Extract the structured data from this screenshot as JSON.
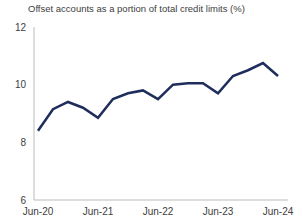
{
  "chart_data": {
    "type": "line",
    "title": "Offset accounts as a portion of total credit limits (%)",
    "categories": [
      "Jun-20",
      null,
      null,
      null,
      "Jun-21",
      null,
      null,
      null,
      "Jun-22",
      null,
      null,
      null,
      "Jun-23",
      null,
      null,
      null,
      "Jun-24"
    ],
    "values": [
      8.4,
      9.15,
      9.4,
      9.2,
      8.85,
      9.5,
      9.7,
      9.8,
      9.5,
      10.0,
      10.05,
      10.05,
      9.7,
      10.3,
      10.5,
      10.75,
      10.3
    ],
    "color": "#1f2d5c",
    "ylim": [
      6,
      12
    ],
    "yticks": [
      6,
      8,
      10,
      12
    ],
    "grid": false
  }
}
